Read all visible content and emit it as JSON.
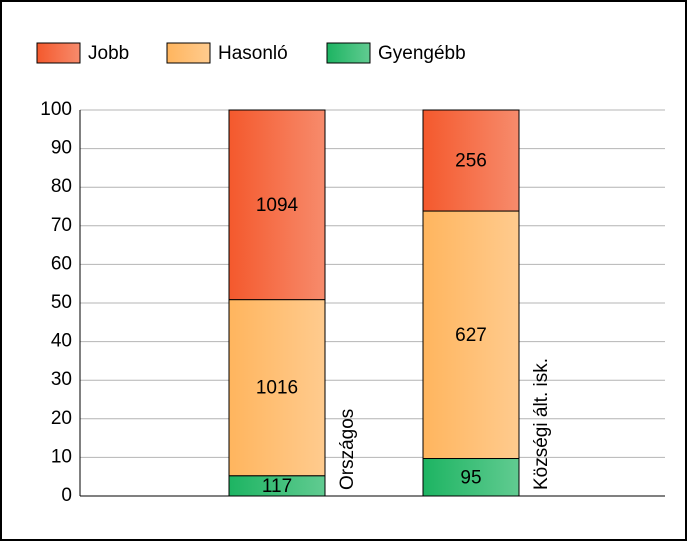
{
  "chart_data": {
    "type": "stacked_percent_bar",
    "categories": [
      "Országos",
      "Községi ált. isk."
    ],
    "series": [
      {
        "name": "Gyengébb",
        "color": "#1db462",
        "values": [
          117,
          95
        ]
      },
      {
        "name": "Hasonló",
        "color": "#ffb55e",
        "values": [
          1016,
          627
        ]
      },
      {
        "name": "Jobb",
        "color": "#f4592d",
        "values": [
          1094,
          256
        ]
      }
    ],
    "legend_order": [
      2,
      1,
      0
    ],
    "ylim": [
      0,
      100
    ],
    "yticks": [
      0,
      10,
      20,
      30,
      40,
      50,
      60,
      70,
      80,
      90,
      100
    ],
    "grid": true
  }
}
